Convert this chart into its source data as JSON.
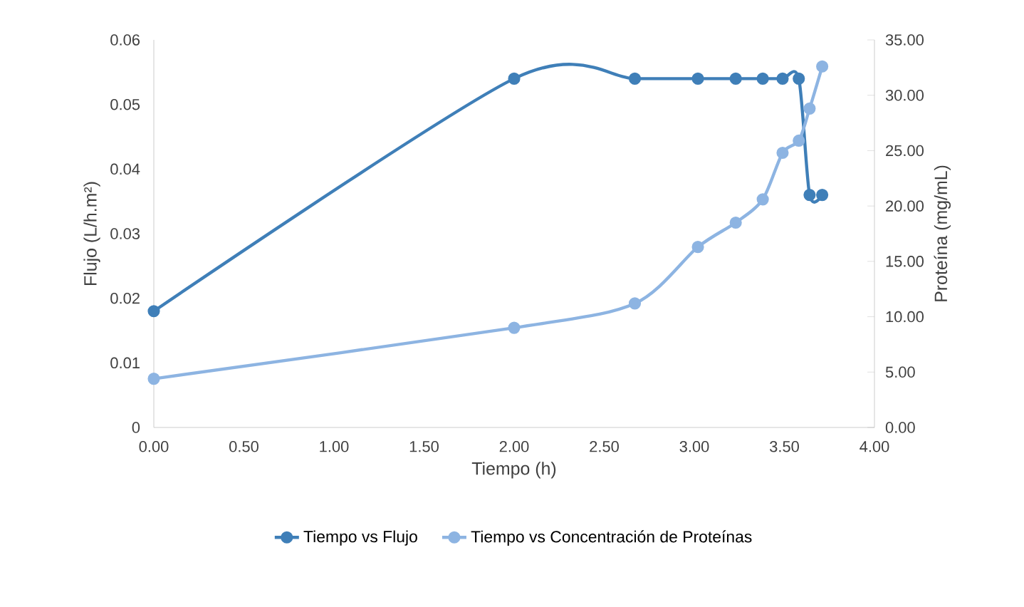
{
  "chart_data": {
    "type": "line",
    "xlabel": "Tiempo (h)",
    "ylabel": "Flujo (L/h.m²)",
    "y2label": "Proteína (mg/mL)",
    "xlim": [
      0,
      4
    ],
    "xticks": [
      {
        "value": 0,
        "label": "0.00"
      },
      {
        "value": 0.5,
        "label": "0.50"
      },
      {
        "value": 1,
        "label": "1.00"
      },
      {
        "value": 1.5,
        "label": "1.50"
      },
      {
        "value": 2,
        "label": "2.00"
      },
      {
        "value": 2.5,
        "label": "2.50"
      },
      {
        "value": 3,
        "label": "3.00"
      },
      {
        "value": 3.5,
        "label": "3.50"
      },
      {
        "value": 4,
        "label": "4.00"
      }
    ],
    "ylim": [
      0,
      0.06
    ],
    "yticks": [
      0,
      0.01,
      0.02,
      0.03,
      0.04,
      0.05,
      0.06
    ],
    "y2lim": [
      0,
      35
    ],
    "y2ticks": [
      {
        "value": 0,
        "label": "0.00"
      },
      {
        "value": 5,
        "label": "5.00"
      },
      {
        "value": 10,
        "label": "10.00"
      },
      {
        "value": 15,
        "label": "15.00"
      },
      {
        "value": 20,
        "label": "20.00"
      },
      {
        "value": 25,
        "label": "25.00"
      },
      {
        "value": 30,
        "label": "30.00"
      },
      {
        "value": 35,
        "label": "35.00"
      }
    ],
    "marker": "circle",
    "legend": "bottom",
    "grid": false,
    "series": [
      {
        "name": "Tiempo vs Flujo",
        "color": "#3f7fb8",
        "x": [
          0,
          2.0,
          2.67,
          3.02,
          3.23,
          3.38,
          3.49,
          3.58,
          3.64,
          3.71
        ],
        "values": [
          0.018,
          0.054,
          0.054,
          0.054,
          0.054,
          0.054,
          0.054,
          0.054,
          0.036,
          0.036
        ]
      },
      {
        "name": "Tiempo vs Concentración de Proteínas",
        "color": "#8db4e2",
        "axis": "y2",
        "x": [
          0,
          2.0,
          2.67,
          3.02,
          3.23,
          3.38,
          3.49,
          3.58,
          3.64,
          3.71
        ],
        "values": [
          4.4,
          9.0,
          11.2,
          16.3,
          18.5,
          20.6,
          24.8,
          25.9,
          28.8,
          32.6
        ]
      }
    ]
  }
}
